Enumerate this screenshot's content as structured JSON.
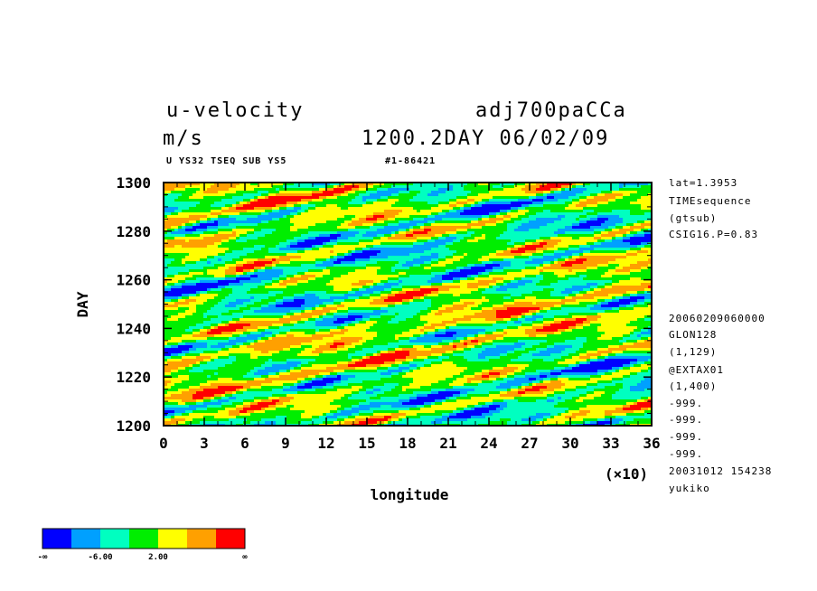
{
  "header": {
    "variable": "u-velocity",
    "run": "adj700paCCa",
    "units": "m/s",
    "time_label": "1200.2DAY 06/02/09",
    "subtitle": "U YS32 TSEQ SUB YS5",
    "id": "#1-86421"
  },
  "meta_right": [
    "lat=1.3953",
    "TIMEsequence",
    "(gtsub)",
    "CSIG16.P=0.83",
    "20060209060000",
    "GLON128",
    "(1,129)",
    "@EXTAX01",
    "(1,400)",
    "-999.",
    "-999.",
    "-999.",
    "-999.",
    "20031012 154238",
    "yukiko"
  ],
  "colorbar": {
    "colors": [
      "#0000ff",
      "#00a0ff",
      "#00ffc0",
      "#00ee00",
      "#ffff00",
      "#ffa000",
      "#ff0000"
    ],
    "labels": [
      "-∞",
      "-6.00",
      "2.00",
      "∞"
    ]
  },
  "chart_data": {
    "type": "heatmap",
    "title": "u-velocity",
    "xlabel": "longitude",
    "ylabel": "DAY",
    "x_multiplier": "(×10)",
    "xlim": [
      0,
      36
    ],
    "ylim": [
      1200,
      1300
    ],
    "x_ticks": [
      "0",
      "3",
      "6",
      "9",
      "12",
      "15",
      "18",
      "21",
      "24",
      "27",
      "30",
      "33",
      "36"
    ],
    "y_ticks": [
      "1200",
      "1220",
      "1240",
      "1260",
      "1280",
      "1300"
    ],
    "color_levels": [
      "-∞",
      "-6.00",
      "2.00",
      "∞"
    ]
  }
}
